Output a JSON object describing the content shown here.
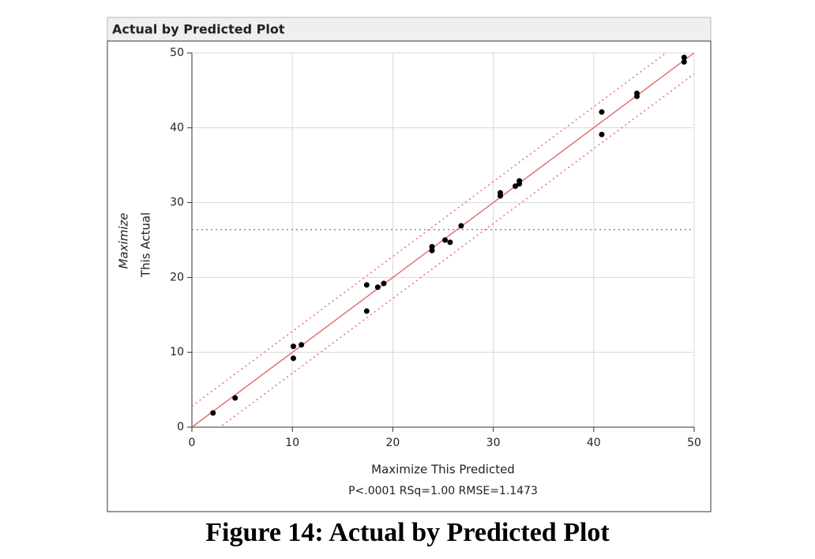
{
  "chart_data": {
    "type": "scatter",
    "title": "Actual by Predicted Plot",
    "xlabel": "Maximize This Predicted",
    "ylabel": [
      "Maximize",
      "This Actual"
    ],
    "annotation": "P<.0001 RSq=1.00 RMSE=1.1473",
    "caption": "Figure 14: Actual by Predicted Plot",
    "x": [
      2.1,
      4.3,
      10.1,
      10.1,
      10.9,
      17.4,
      17.4,
      18.5,
      19.1,
      23.9,
      23.9,
      25.2,
      25.7,
      26.8,
      30.7,
      30.7,
      32.2,
      32.6,
      32.6,
      40.8,
      40.8,
      44.3,
      44.3,
      49.0,
      49.0
    ],
    "values": [
      1.9,
      3.9,
      10.8,
      9.2,
      11.0,
      19.0,
      15.5,
      18.7,
      19.2,
      24.1,
      23.6,
      25.0,
      24.7,
      26.9,
      31.3,
      30.9,
      32.2,
      32.9,
      32.5,
      42.1,
      39.1,
      44.6,
      44.2,
      49.4,
      48.8
    ],
    "color": "#000000",
    "fit": {
      "slope": 1,
      "intercept": 0,
      "band": 2.8,
      "color": "#e86f6f"
    },
    "mean": {
      "value": 26.4,
      "color": "#6f8fe8"
    },
    "xlim": [
      0,
      50
    ],
    "ylim": [
      0,
      50
    ],
    "xticks": [
      0,
      10,
      20,
      30,
      40,
      50
    ],
    "yticks": [
      0,
      10,
      20,
      30,
      40,
      50
    ],
    "grid": true
  }
}
